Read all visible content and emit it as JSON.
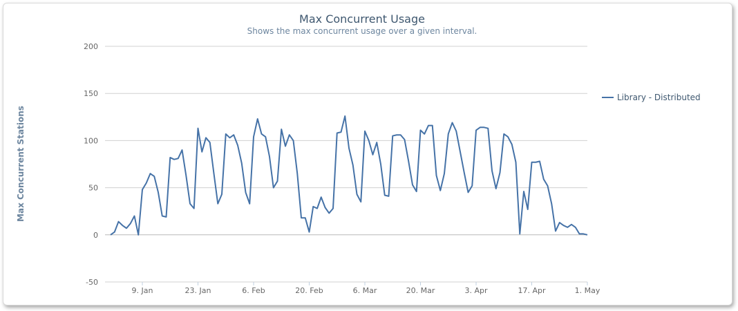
{
  "chart_data": {
    "type": "line",
    "title": "Max Concurrent Usage",
    "subtitle": "Shows the max concurrent usage over a given interval.",
    "xlabel": "",
    "ylabel": "Max Concurrent Stations",
    "ylim": [
      -50,
      200
    ],
    "yticks": [
      -50,
      0,
      50,
      100,
      150,
      200
    ],
    "grid": true,
    "legend_position": "right",
    "x_start": "Jan 1",
    "x_end": "May 1",
    "xticks": [
      {
        "label": "9. Jan",
        "day": 8
      },
      {
        "label": "23. Jan",
        "day": 22
      },
      {
        "label": "6. Feb",
        "day": 36
      },
      {
        "label": "20. Feb",
        "day": 50
      },
      {
        "label": "6. Mar",
        "day": 64
      },
      {
        "label": "20. Mar",
        "day": 78
      },
      {
        "label": "3. Apr",
        "day": 92
      },
      {
        "label": "17. Apr",
        "day": 106
      },
      {
        "label": "1. May",
        "day": 120
      }
    ],
    "series": [
      {
        "name": "Library - Distributed",
        "color": "#4572a7",
        "values": [
          0,
          3,
          14,
          10,
          7,
          12,
          20,
          0,
          48,
          55,
          65,
          62,
          45,
          20,
          19,
          82,
          80,
          81,
          90,
          63,
          33,
          28,
          113,
          88,
          103,
          98,
          65,
          33,
          43,
          107,
          103,
          106,
          95,
          76,
          45,
          33,
          104,
          123,
          107,
          104,
          83,
          50,
          57,
          112,
          94,
          106,
          100,
          65,
          18,
          18,
          3,
          30,
          28,
          40,
          29,
          23,
          28,
          108,
          109,
          126,
          92,
          74,
          43,
          35,
          110,
          100,
          85,
          98,
          75,
          42,
          41,
          105,
          106,
          106,
          101,
          78,
          53,
          46,
          111,
          107,
          116,
          116,
          63,
          47,
          65,
          107,
          119,
          110,
          88,
          66,
          45,
          52,
          111,
          114,
          114,
          113,
          68,
          49,
          66,
          107,
          104,
          96,
          77,
          1,
          46,
          27,
          77,
          77,
          78,
          59,
          52,
          33,
          4,
          13,
          10,
          8,
          11,
          8,
          1,
          1,
          0
        ]
      }
    ]
  }
}
